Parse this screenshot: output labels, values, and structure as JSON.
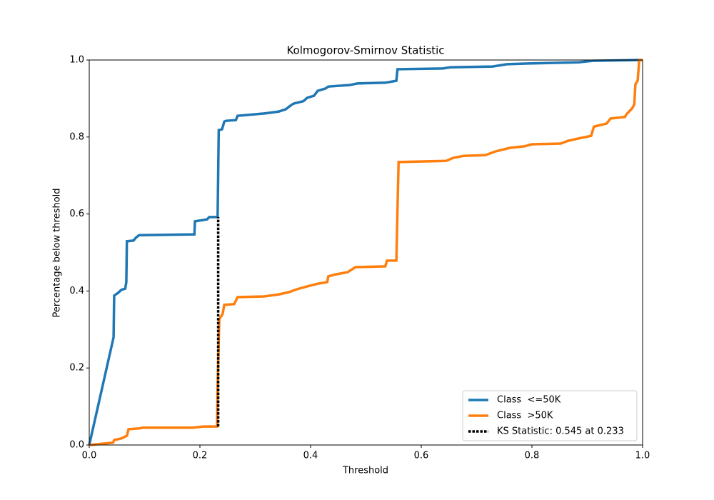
{
  "chart_data": {
    "type": "line",
    "title": "Kolmogorov-Smirnov Statistic",
    "xlabel": "Threshold",
    "ylabel": "Percentage below threshold",
    "xlim": [
      0,
      1
    ],
    "ylim": [
      0,
      1
    ],
    "xticks": [
      {
        "value": 0,
        "label": "0.0"
      },
      0.2,
      0.4,
      0.6,
      0.8,
      {
        "value": 1,
        "label": "1.0"
      }
    ],
    "yticks": [
      {
        "value": 0,
        "label": "0.0"
      },
      0.2,
      0.4,
      0.6,
      0.8,
      {
        "value": 1,
        "label": "1.0"
      }
    ],
    "legend": "lower right",
    "series": [
      {
        "name": "Class  <=50K",
        "color": "#1f77b4",
        "x": [
          0,
          0.044,
          0.045,
          0.052,
          0.058,
          0.065,
          0.067,
          0.068,
          0.08,
          0.084,
          0.09,
          0.19,
          0.191,
          0.213,
          0.217,
          0.232,
          0.234,
          0.24,
          0.244,
          0.247,
          0.265,
          0.268,
          0.316,
          0.342,
          0.355,
          0.365,
          0.37,
          0.387,
          0.394,
          0.406,
          0.413,
          0.427,
          0.432,
          0.471,
          0.484,
          0.535,
          0.555,
          0.557,
          0.639,
          0.652,
          0.729,
          0.755,
          0.794,
          0.884,
          0.91,
          1
        ],
        "values": [
          0,
          0.28,
          0.388,
          0.395,
          0.403,
          0.406,
          0.423,
          0.529,
          0.531,
          0.538,
          0.545,
          0.547,
          0.581,
          0.586,
          0.592,
          0.592,
          0.818,
          0.82,
          0.84,
          0.842,
          0.844,
          0.855,
          0.861,
          0.866,
          0.872,
          0.883,
          0.887,
          0.893,
          0.902,
          0.907,
          0.92,
          0.926,
          0.931,
          0.935,
          0.939,
          0.941,
          0.946,
          0.976,
          0.978,
          0.981,
          0.983,
          0.989,
          0.991,
          0.994,
          0.998,
          1
        ]
      },
      {
        "name": "Class  >50K",
        "color": "#ff7f0e",
        "x": [
          0,
          0.043,
          0.045,
          0.058,
          0.065,
          0.068,
          0.071,
          0.09,
          0.097,
          0.187,
          0.206,
          0.231,
          0.232,
          0.235,
          0.241,
          0.244,
          0.262,
          0.268,
          0.316,
          0.342,
          0.361,
          0.374,
          0.394,
          0.413,
          0.43,
          0.432,
          0.445,
          0.467,
          0.481,
          0.535,
          0.538,
          0.555,
          0.559,
          0.645,
          0.658,
          0.677,
          0.716,
          0.735,
          0.761,
          0.787,
          0.8,
          0.852,
          0.865,
          0.89,
          0.907,
          0.912,
          0.935,
          0.942,
          0.968,
          0.972,
          0.981,
          0.985,
          0.987,
          0.991,
          0.994,
          1
        ],
        "values": [
          0,
          0.006,
          0.013,
          0.017,
          0.022,
          0.024,
          0.041,
          0.043,
          0.045,
          0.045,
          0.048,
          0.048,
          0.154,
          0.327,
          0.34,
          0.364,
          0.366,
          0.384,
          0.386,
          0.391,
          0.397,
          0.404,
          0.412,
          0.419,
          0.423,
          0.438,
          0.443,
          0.449,
          0.462,
          0.464,
          0.479,
          0.479,
          0.735,
          0.738,
          0.746,
          0.751,
          0.753,
          0.763,
          0.772,
          0.776,
          0.781,
          0.783,
          0.79,
          0.798,
          0.803,
          0.827,
          0.835,
          0.848,
          0.852,
          0.861,
          0.874,
          0.885,
          0.937,
          0.946,
          1,
          1
        ]
      },
      {
        "name": "KS Statistic: 0.545 at 0.233",
        "color": "#000000",
        "dashed": true,
        "x": [
          0.233,
          0.233
        ],
        "values": [
          0.048,
          0.592
        ]
      }
    ]
  }
}
